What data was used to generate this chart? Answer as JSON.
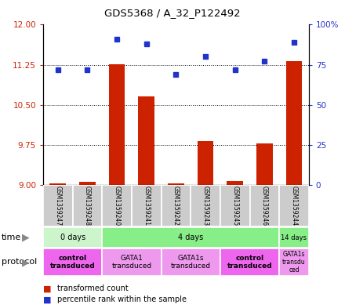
{
  "title": "GDS5368 / A_32_P122492",
  "samples": [
    "GSM1359247",
    "GSM1359248",
    "GSM1359240",
    "GSM1359241",
    "GSM1359242",
    "GSM1359243",
    "GSM1359245",
    "GSM1359246",
    "GSM1359244"
  ],
  "bar_values": [
    9.02,
    9.05,
    11.26,
    10.65,
    9.02,
    9.82,
    9.07,
    9.78,
    11.32
  ],
  "dot_values": [
    72,
    72,
    91,
    88,
    69,
    80,
    72,
    77,
    89
  ],
  "ylim_left": [
    9,
    12
  ],
  "ylim_right": [
    0,
    100
  ],
  "yticks_left": [
    9,
    9.75,
    10.5,
    11.25,
    12
  ],
  "yticks_right": [
    0,
    25,
    50,
    75,
    100
  ],
  "ytick_right_labels": [
    "0",
    "25",
    "50",
    "75",
    "100%"
  ],
  "bar_color": "#cc2200",
  "dot_color": "#2233cc",
  "bar_width": 0.55,
  "time_groups": [
    {
      "label": "0 days",
      "start": 0,
      "end": 2,
      "color": "#ccf5cc"
    },
    {
      "label": "4 days",
      "start": 2,
      "end": 8,
      "color": "#88ee88"
    },
    {
      "label": "14 days",
      "start": 8,
      "end": 9,
      "color": "#88ee88"
    }
  ],
  "protocol_groups": [
    {
      "label": "control\ntransduced",
      "start": 0,
      "end": 2,
      "color": "#ee66ee",
      "bold": true
    },
    {
      "label": "GATA1\ntransduced",
      "start": 2,
      "end": 4,
      "color": "#ee99ee",
      "bold": false
    },
    {
      "label": "GATA1s\ntransduced",
      "start": 4,
      "end": 6,
      "color": "#ee99ee",
      "bold": false
    },
    {
      "label": "control\ntransduced",
      "start": 6,
      "end": 8,
      "color": "#ee66ee",
      "bold": true
    },
    {
      "label": "GATA1s\ntransdu\nced",
      "start": 8,
      "end": 9,
      "color": "#ee99ee",
      "bold": false
    }
  ],
  "sample_box_color": "#cccccc",
  "left_axis_color": "#cc2200",
  "right_axis_color": "#2233cc",
  "grid_linestyle": "dotted",
  "legend_bar_label": "transformed count",
  "legend_dot_label": "percentile rank within the sample"
}
